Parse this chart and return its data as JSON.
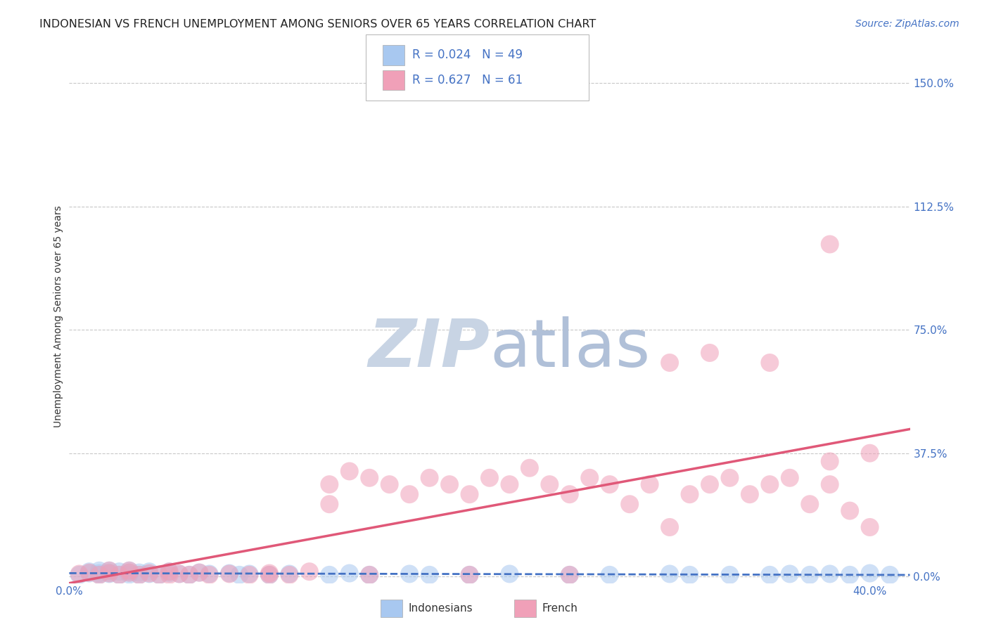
{
  "title": "INDONESIAN VS FRENCH UNEMPLOYMENT AMONG SENIORS OVER 65 YEARS CORRELATION CHART",
  "source": "Source: ZipAtlas.com",
  "ylabel": "Unemployment Among Seniors over 65 years",
  "xlim": [
    0.0,
    0.42
  ],
  "ylim": [
    -0.02,
    1.6
  ],
  "ytick_right_labels": [
    "150.0%",
    "112.5%",
    "75.0%",
    "37.5%",
    "0.0%"
  ],
  "ytick_right_values": [
    1.5,
    1.125,
    0.75,
    0.375,
    0.0
  ],
  "grid_color": "#c8c8c8",
  "background_color": "#ffffff",
  "indonesian_color": "#a8c8f0",
  "french_color": "#f0a0b8",
  "indonesian_line_color": "#4472c4",
  "french_line_color": "#e05878",
  "legend_text_color": "#4472c4",
  "axis_label_color": "#4472c4",
  "watermark_zip_color": "#c8d8e8",
  "watermark_atlas_color": "#b8c8d8",
  "indonesian_x": [
    0.005,
    0.01,
    0.01,
    0.015,
    0.015,
    0.015,
    0.02,
    0.02,
    0.02,
    0.025,
    0.025,
    0.03,
    0.03,
    0.03,
    0.035,
    0.035,
    0.04,
    0.04,
    0.045,
    0.05,
    0.05,
    0.055,
    0.06,
    0.065,
    0.07,
    0.08,
    0.085,
    0.09,
    0.1,
    0.11,
    0.13,
    0.14,
    0.15,
    0.17,
    0.18,
    0.2,
    0.22,
    0.25,
    0.27,
    0.3,
    0.31,
    0.33,
    0.35,
    0.36,
    0.37,
    0.38,
    0.39,
    0.4,
    0.41
  ],
  "indonesian_y": [
    0.005,
    0.01,
    0.015,
    0.005,
    0.01,
    0.018,
    0.008,
    0.012,
    0.018,
    0.005,
    0.015,
    0.006,
    0.012,
    0.018,
    0.005,
    0.012,
    0.008,
    0.015,
    0.005,
    0.01,
    0.015,
    0.008,
    0.005,
    0.012,
    0.008,
    0.01,
    0.005,
    0.008,
    0.005,
    0.008,
    0.005,
    0.01,
    0.005,
    0.008,
    0.005,
    0.005,
    0.008,
    0.005,
    0.005,
    0.008,
    0.005,
    0.005,
    0.005,
    0.008,
    0.005,
    0.008,
    0.005,
    0.01,
    0.005
  ],
  "french_x": [
    0.005,
    0.01,
    0.015,
    0.02,
    0.02,
    0.025,
    0.03,
    0.03,
    0.035,
    0.04,
    0.045,
    0.05,
    0.055,
    0.06,
    0.065,
    0.07,
    0.08,
    0.09,
    0.1,
    0.11,
    0.12,
    0.13,
    0.13,
    0.14,
    0.15,
    0.16,
    0.17,
    0.18,
    0.19,
    0.2,
    0.21,
    0.22,
    0.23,
    0.24,
    0.25,
    0.26,
    0.27,
    0.28,
    0.29,
    0.3,
    0.31,
    0.32,
    0.33,
    0.34,
    0.35,
    0.36,
    0.37,
    0.38,
    0.38,
    0.39,
    0.4,
    0.3,
    0.35,
    0.32,
    0.25,
    0.2,
    0.15,
    0.1,
    0.05,
    0.4,
    0.38
  ],
  "french_y": [
    0.008,
    0.012,
    0.005,
    0.01,
    0.018,
    0.005,
    0.012,
    0.018,
    0.005,
    0.01,
    0.005,
    0.015,
    0.008,
    0.005,
    0.012,
    0.005,
    0.008,
    0.005,
    0.01,
    0.005,
    0.015,
    0.22,
    0.28,
    0.32,
    0.3,
    0.28,
    0.25,
    0.3,
    0.28,
    0.25,
    0.3,
    0.28,
    0.33,
    0.28,
    0.25,
    0.3,
    0.28,
    0.22,
    0.28,
    0.15,
    0.25,
    0.28,
    0.3,
    0.25,
    0.28,
    0.3,
    0.22,
    0.28,
    0.35,
    0.2,
    0.15,
    0.65,
    0.65,
    0.68,
    0.005,
    0.005,
    0.005,
    0.005,
    0.005,
    0.375,
    1.01
  ]
}
